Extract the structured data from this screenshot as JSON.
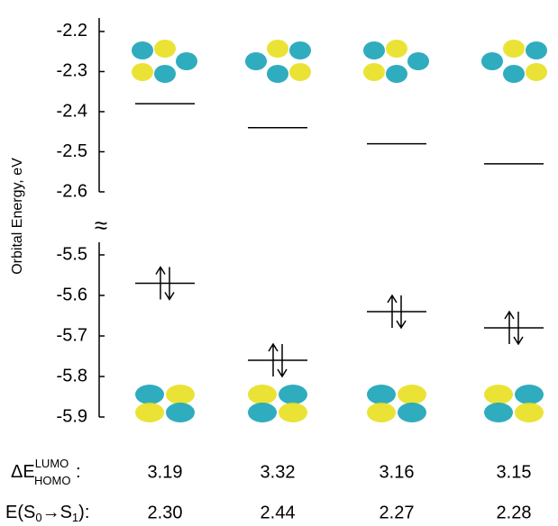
{
  "chart_data": [
    {
      "type": "level",
      "ylabel": "Orbital Energy, eV",
      "ylim": [
        -2.6,
        -2.17
      ],
      "yticks": [
        -2.2,
        -2.3,
        -2.4,
        -2.5,
        -2.6
      ],
      "values": [
        -2.38,
        -2.44,
        -2.48,
        -2.53
      ],
      "color": "#000000"
    },
    {
      "type": "level",
      "ylim": [
        -5.9,
        -5.47
      ],
      "yticks": [
        -5.5,
        -5.6,
        -5.7,
        -5.8,
        -5.9
      ],
      "values": [
        -5.57,
        -5.76,
        -5.64,
        -5.68
      ],
      "color": "#000000",
      "axis_break": "≈"
    }
  ],
  "table": {
    "rows": [
      {
        "label": {
          "main": "ΔE",
          "sup": "LUMO",
          "sub": "HOMO",
          "end": " :"
        },
        "values": [
          "3.19",
          "3.32",
          "3.16",
          "3.15"
        ]
      },
      {
        "label": {
          "a": "E(S",
          "s0": "0",
          "b": "→S",
          "s1": "1",
          "c": "):"
        },
        "values": [
          "2.30",
          "2.44",
          "2.27",
          "2.28"
        ]
      }
    ]
  }
}
